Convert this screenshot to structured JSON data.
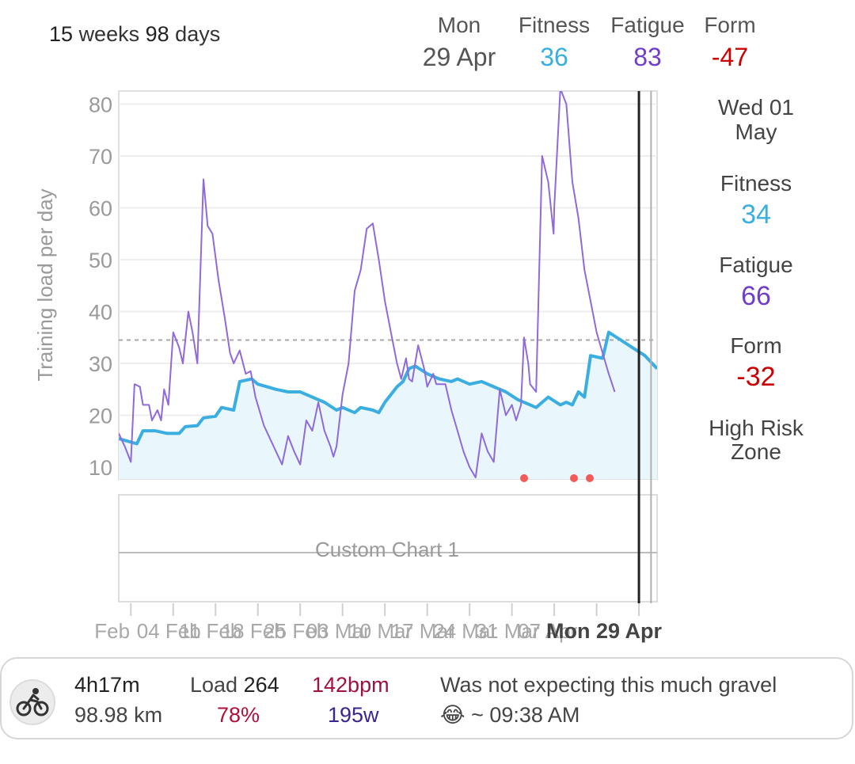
{
  "header": {
    "range_weeks": "15",
    "range_weeks_unit": "weeks",
    "range_days": "98",
    "range_days_unit": "days",
    "date_label": "Mon",
    "date_value": "29 Apr",
    "fitness_label": "Fitness",
    "fitness_value": "36",
    "fatigue_label": "Fatigue",
    "fatigue_value": "83",
    "form_label": "Form",
    "form_value": "-47"
  },
  "side": {
    "date": "Wed 01 May",
    "fitness_label": "Fitness",
    "fitness_value": "34",
    "fatigue_label": "Fatigue",
    "fatigue_value": "66",
    "form_label": "Form",
    "form_value": "-32",
    "zone": "High Risk Zone"
  },
  "colors": {
    "fitness": "#3aaee0",
    "fatigue": "#6f3fc8",
    "form": "#cc0000",
    "fatigue_line": "#8f6ad8",
    "fitness_fill": "#e9f6fb"
  },
  "custom_chart": {
    "label": "Custom Chart 1"
  },
  "x_axis": {
    "ticks": [
      "Feb",
      "04 Feb",
      "11 Feb",
      "18 Feb",
      "25 Feb",
      "03 Mar",
      "10 Mar",
      "17 Mar",
      "24 Mar",
      "31 Mar",
      "07 Apr"
    ],
    "selected": "Mon 29 Apr"
  },
  "activity": {
    "icon": "bicycle-icon",
    "duration": "4h17m",
    "distance": "98.98 km",
    "load_label": "Load",
    "load_value": "264",
    "load_pct": "78%",
    "heart_rate": "142bpm",
    "power": "195w",
    "note": "Was not expecting this much gravel",
    "emoji": "😂",
    "time": "~ 09:38 AM"
  },
  "chart_data": {
    "type": "line",
    "ylabel": "Training load per day",
    "ylim": [
      8,
      83
    ],
    "yticks": [
      10,
      20,
      30,
      40,
      50,
      60,
      70,
      80
    ],
    "grid": true,
    "reference_line": 34.5,
    "selected_day": 86,
    "hover_day": 88,
    "series": [
      {
        "name": "Fitness",
        "points": [
          [
            0,
            15.5
          ],
          [
            3,
            14.5
          ],
          [
            4,
            17
          ],
          [
            6,
            17
          ],
          [
            8,
            16.5
          ],
          [
            10,
            16.5
          ],
          [
            11,
            17.8
          ],
          [
            13,
            18
          ],
          [
            14,
            19.5
          ],
          [
            16,
            19.8
          ],
          [
            17,
            21.5
          ],
          [
            19,
            21
          ],
          [
            20,
            26.5
          ],
          [
            22,
            27
          ],
          [
            23,
            26
          ],
          [
            26,
            25
          ],
          [
            28,
            24.5
          ],
          [
            30,
            24.5
          ],
          [
            32,
            23.5
          ],
          [
            34,
            22.5
          ],
          [
            36,
            21
          ],
          [
            37,
            21.5
          ],
          [
            39,
            20.5
          ],
          [
            40,
            21.5
          ],
          [
            42,
            21
          ],
          [
            43,
            20.5
          ],
          [
            44,
            22.5
          ],
          [
            46,
            25.5
          ],
          [
            47,
            26.5
          ],
          [
            48,
            29
          ],
          [
            49,
            29.5
          ],
          [
            51,
            28
          ],
          [
            53,
            27
          ],
          [
            55,
            26.5
          ],
          [
            56,
            27
          ],
          [
            58,
            26
          ],
          [
            60,
            26.5
          ],
          [
            62,
            25.5
          ],
          [
            64,
            24.5
          ],
          [
            66,
            23
          ],
          [
            68,
            22
          ],
          [
            69,
            21.5
          ],
          [
            70,
            22.5
          ],
          [
            71,
            23.5
          ],
          [
            73,
            22
          ],
          [
            74,
            22.5
          ],
          [
            75,
            22
          ],
          [
            76,
            24.5
          ],
          [
            77,
            23.5
          ],
          [
            78,
            31.5
          ],
          [
            80,
            31
          ],
          [
            81,
            36
          ],
          [
            83,
            34.5
          ],
          [
            85,
            33
          ],
          [
            87,
            31.5
          ],
          [
            89,
            29
          ]
        ]
      },
      {
        "name": "Fatigue",
        "points": [
          [
            0,
            16.5
          ],
          [
            1,
            14
          ],
          [
            2,
            11
          ],
          [
            2.6,
            26
          ],
          [
            3.5,
            25.5
          ],
          [
            4,
            22
          ],
          [
            5,
            22
          ],
          [
            5.5,
            19
          ],
          [
            6.4,
            21
          ],
          [
            7,
            19
          ],
          [
            7.5,
            25
          ],
          [
            8.2,
            22
          ],
          [
            9,
            36
          ],
          [
            10,
            33
          ],
          [
            10.6,
            30
          ],
          [
            11.5,
            40
          ],
          [
            12.2,
            36
          ],
          [
            13,
            30
          ],
          [
            14,
            65.5
          ],
          [
            14.7,
            56.5
          ],
          [
            15.5,
            55
          ],
          [
            16.5,
            46
          ],
          [
            17.5,
            39
          ],
          [
            18.4,
            32
          ],
          [
            19,
            30
          ],
          [
            20,
            32.5
          ],
          [
            21,
            28
          ],
          [
            21.8,
            28.5
          ],
          [
            22.6,
            23.5
          ],
          [
            24,
            18
          ],
          [
            26,
            13
          ],
          [
            27,
            10.5
          ],
          [
            28,
            16
          ],
          [
            29,
            13
          ],
          [
            30,
            10.5
          ],
          [
            31,
            19
          ],
          [
            32,
            17
          ],
          [
            33,
            22.5
          ],
          [
            34,
            17
          ],
          [
            35,
            14
          ],
          [
            35.5,
            12
          ],
          [
            36,
            14
          ],
          [
            37,
            24
          ],
          [
            38,
            30
          ],
          [
            39,
            44
          ],
          [
            40,
            48
          ],
          [
            41,
            56
          ],
          [
            42,
            57
          ],
          [
            43,
            50
          ],
          [
            44,
            42
          ],
          [
            45,
            36
          ],
          [
            46,
            30
          ],
          [
            46.7,
            27
          ],
          [
            47.5,
            31
          ],
          [
            48,
            27
          ],
          [
            48.5,
            26.5
          ],
          [
            49.5,
            33.5
          ],
          [
            50.5,
            29
          ],
          [
            51,
            25.5
          ],
          [
            52,
            28
          ],
          [
            52.5,
            26
          ],
          [
            54,
            26
          ],
          [
            55,
            21
          ],
          [
            56,
            17
          ],
          [
            57,
            13
          ],
          [
            58,
            10
          ],
          [
            59,
            8
          ],
          [
            60,
            16.5
          ],
          [
            61,
            13
          ],
          [
            62,
            11
          ],
          [
            63,
            25
          ],
          [
            64,
            20
          ],
          [
            65,
            22
          ],
          [
            65.7,
            19
          ],
          [
            66.5,
            22
          ],
          [
            67,
            35
          ],
          [
            67.7,
            30
          ],
          [
            68,
            26
          ],
          [
            69,
            24.5
          ],
          [
            70,
            70
          ],
          [
            71,
            65
          ],
          [
            71.9,
            55
          ],
          [
            72,
            60
          ],
          [
            73,
            83
          ],
          [
            74,
            80
          ],
          [
            75,
            65
          ],
          [
            76,
            58
          ],
          [
            77,
            48
          ],
          [
            78,
            42
          ],
          [
            79,
            36
          ],
          [
            80,
            32
          ],
          [
            81,
            28
          ],
          [
            82,
            24.5
          ]
        ]
      }
    ]
  }
}
